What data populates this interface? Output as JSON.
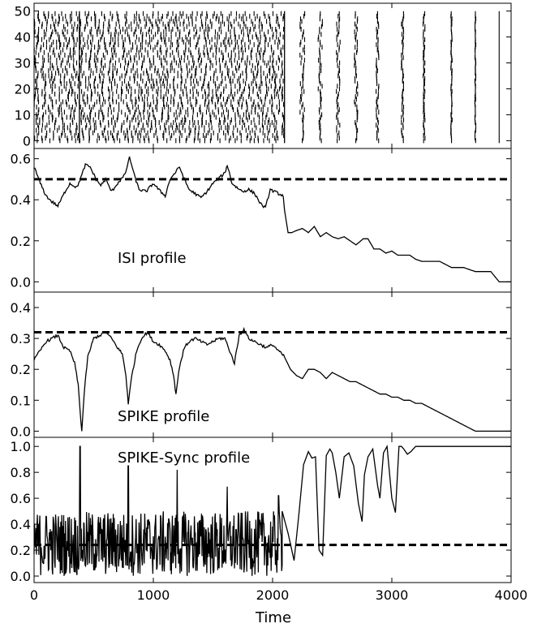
{
  "figure": {
    "xlabel": "Time"
  },
  "chart_data": [
    {
      "type": "scatter",
      "subtype": "raster",
      "xlim": [
        0,
        4000
      ],
      "ylim": [
        -3,
        53
      ],
      "yticks": [
        0,
        10,
        20,
        30,
        40,
        50
      ],
      "n_neurons": 50,
      "phases": [
        {
          "x_start": 0,
          "x_end": 2100,
          "pattern": "random firing with synchronous events"
        },
        {
          "x_start": 2100,
          "x_end": 4000,
          "pattern": "increasingly synchronized volleys"
        }
      ],
      "synchronous_events_x": [
        380,
        2100
      ],
      "volley_x": [
        2250,
        2400,
        2550,
        2700,
        2880,
        3090,
        3270,
        3500,
        3700,
        3900
      ]
    },
    {
      "type": "line",
      "label": "ISI profile",
      "xlim": [
        0,
        4000
      ],
      "ylim": [
        -0.05,
        0.65
      ],
      "yticks": [
        0.0,
        0.2,
        0.4,
        0.6
      ],
      "threshold": 0.5,
      "x": [
        0,
        60,
        100,
        150,
        200,
        260,
        300,
        360,
        400,
        430,
        470,
        520,
        560,
        600,
        650,
        700,
        760,
        790,
        800,
        840,
        880,
        940,
        1000,
        1060,
        1100,
        1140,
        1180,
        1220,
        1260,
        1300,
        1350,
        1400,
        1450,
        1500,
        1560,
        1600,
        1620,
        1660,
        1700,
        1750,
        1800,
        1850,
        1900,
        1940,
        1980,
        2050,
        2090,
        2100,
        2130,
        2160,
        2200,
        2250,
        2300,
        2350,
        2400,
        2450,
        2500,
        2550,
        2600,
        2650,
        2700,
        2760,
        2800,
        2850,
        2900,
        2950,
        3000,
        3050,
        3100,
        3150,
        3200,
        3250,
        3270,
        3300,
        3400,
        3500,
        3550,
        3600,
        3700,
        3800,
        3830,
        3900,
        3920,
        4000
      ],
      "y": [
        0.56,
        0.47,
        0.42,
        0.39,
        0.37,
        0.44,
        0.48,
        0.46,
        0.52,
        0.57,
        0.56,
        0.5,
        0.47,
        0.5,
        0.44,
        0.48,
        0.52,
        0.58,
        0.61,
        0.52,
        0.45,
        0.44,
        0.48,
        0.44,
        0.42,
        0.5,
        0.53,
        0.56,
        0.5,
        0.45,
        0.43,
        0.41,
        0.44,
        0.48,
        0.51,
        0.53,
        0.57,
        0.48,
        0.46,
        0.44,
        0.45,
        0.43,
        0.38,
        0.36,
        0.45,
        0.43,
        0.42,
        0.35,
        0.24,
        0.24,
        0.25,
        0.26,
        0.24,
        0.27,
        0.22,
        0.24,
        0.22,
        0.21,
        0.22,
        0.2,
        0.18,
        0.21,
        0.21,
        0.16,
        0.16,
        0.14,
        0.15,
        0.13,
        0.13,
        0.13,
        0.11,
        0.1,
        0.1,
        0.1,
        0.1,
        0.07,
        0.07,
        0.07,
        0.05,
        0.05,
        0.05,
        0.0,
        0.0,
        0.0
      ]
    },
    {
      "type": "line",
      "label": "SPIKE profile",
      "xlim": [
        0,
        4000
      ],
      "ylim": [
        -0.02,
        0.45
      ],
      "yticks": [
        0.0,
        0.1,
        0.2,
        0.3,
        0.4
      ],
      "threshold": 0.32,
      "x": [
        0,
        50,
        100,
        150,
        200,
        250,
        300,
        340,
        370,
        385,
        400,
        420,
        450,
        500,
        550,
        600,
        650,
        700,
        740,
        770,
        790,
        820,
        860,
        900,
        950,
        1000,
        1050,
        1100,
        1140,
        1170,
        1190,
        1220,
        1260,
        1300,
        1350,
        1400,
        1450,
        1500,
        1550,
        1600,
        1640,
        1680,
        1720,
        1760,
        1800,
        1850,
        1900,
        1950,
        2000,
        2050,
        2100,
        2150,
        2200,
        2250,
        2300,
        2350,
        2400,
        2450,
        2500,
        2550,
        2600,
        2650,
        2700,
        2750,
        2800,
        2850,
        2900,
        2950,
        3000,
        3050,
        3100,
        3150,
        3200,
        3250,
        3300,
        3350,
        3400,
        3450,
        3500,
        3550,
        3600,
        3650,
        3700,
        3750,
        3800,
        3850,
        3900,
        3950,
        4000
      ],
      "y": [
        0.23,
        0.26,
        0.29,
        0.3,
        0.31,
        0.27,
        0.26,
        0.22,
        0.15,
        0.07,
        0.0,
        0.12,
        0.24,
        0.3,
        0.31,
        0.32,
        0.3,
        0.27,
        0.25,
        0.18,
        0.09,
        0.18,
        0.26,
        0.3,
        0.32,
        0.29,
        0.28,
        0.26,
        0.23,
        0.18,
        0.12,
        0.21,
        0.27,
        0.29,
        0.3,
        0.29,
        0.28,
        0.29,
        0.3,
        0.3,
        0.26,
        0.22,
        0.31,
        0.33,
        0.3,
        0.29,
        0.28,
        0.27,
        0.28,
        0.26,
        0.24,
        0.2,
        0.18,
        0.17,
        0.2,
        0.2,
        0.19,
        0.17,
        0.19,
        0.18,
        0.17,
        0.16,
        0.16,
        0.15,
        0.14,
        0.13,
        0.12,
        0.12,
        0.11,
        0.11,
        0.1,
        0.1,
        0.09,
        0.09,
        0.08,
        0.07,
        0.06,
        0.05,
        0.04,
        0.03,
        0.02,
        0.01,
        0.0,
        0.0,
        0.0,
        0.0,
        0.0,
        0.0,
        0.0
      ]
    },
    {
      "type": "line",
      "label": "SPIKE-Sync profile",
      "xlim": [
        0,
        4000
      ],
      "ylim": [
        -0.05,
        1.07
      ],
      "yticks": [
        0.0,
        0.2,
        0.4,
        0.6,
        0.8,
        1.0
      ],
      "xticks": [
        0,
        1000,
        2000,
        3000,
        4000
      ],
      "threshold": 0.24,
      "noise_range_x": [
        0,
        2080
      ],
      "noise_y_range": [
        0.0,
        0.5
      ],
      "peaks": [
        {
          "x": 385,
          "y": 1.0
        },
        {
          "x": 790,
          "y": 0.85
        },
        {
          "x": 1200,
          "y": 0.82
        },
        {
          "x": 1620,
          "y": 0.69
        },
        {
          "x": 2050,
          "y": 0.62
        }
      ],
      "x": [
        2080,
        2130,
        2180,
        2220,
        2260,
        2300,
        2330,
        2360,
        2390,
        2420,
        2450,
        2480,
        2500,
        2530,
        2560,
        2600,
        2640,
        2680,
        2720,
        2750,
        2770,
        2800,
        2840,
        2880,
        2900,
        2930,
        2960,
        3000,
        3030,
        3060,
        3080,
        3100,
        3130,
        3160,
        3200,
        3260,
        3300,
        3400,
        3600,
        3800,
        4000
      ],
      "y": [
        0.5,
        0.33,
        0.12,
        0.47,
        0.86,
        0.96,
        0.91,
        0.92,
        0.2,
        0.16,
        0.93,
        0.98,
        0.95,
        0.8,
        0.6,
        0.92,
        0.95,
        0.85,
        0.56,
        0.42,
        0.78,
        0.92,
        0.98,
        0.7,
        0.6,
        0.95,
        1.0,
        0.6,
        0.49,
        1.0,
        1.0,
        0.98,
        0.94,
        0.96,
        1.0,
        1.0,
        1.0,
        1.0,
        1.0,
        1.0,
        1.0
      ]
    }
  ]
}
